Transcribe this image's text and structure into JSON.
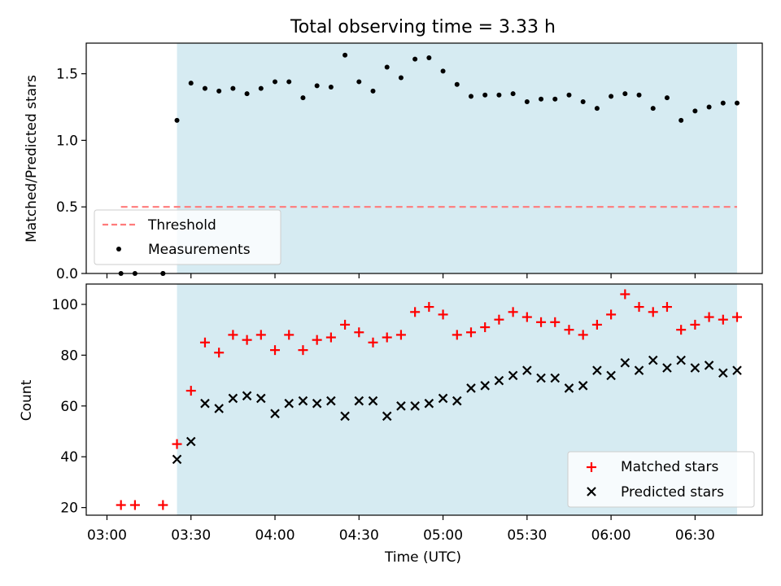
{
  "title": "Total observing time = 3.33 h",
  "colors": {
    "shade": "#add8e6",
    "threshold": "#ff7b7b",
    "matched": "#ff0000",
    "predicted": "#000000",
    "measurement": "#000000"
  },
  "x_axis": {
    "label": "Time (UTC)",
    "ticks": [
      {
        "label": "03:00",
        "min": 180
      },
      {
        "label": "03:30",
        "min": 210
      },
      {
        "label": "04:00",
        "min": 240
      },
      {
        "label": "04:30",
        "min": 270
      },
      {
        "label": "05:00",
        "min": 300
      },
      {
        "label": "05:30",
        "min": 330
      },
      {
        "label": "06:00",
        "min": 360
      },
      {
        "label": "06:30",
        "min": 390
      }
    ]
  },
  "chart_data": [
    {
      "type": "scatter",
      "ylabel": "Matched/Predicted stars",
      "ylim": [
        0,
        1.73
      ],
      "yticks": [
        "0.0",
        "0.5",
        "1.0",
        "1.5"
      ],
      "shaded_span": [
        "03:25",
        "06:45"
      ],
      "threshold": {
        "name": "Threshold",
        "y": 0.5,
        "x_range": [
          "03:05",
          "06:45"
        ]
      },
      "legend": {
        "placement": "lower-left",
        "entries": [
          "Threshold",
          "Measurements"
        ]
      },
      "series": [
        {
          "name": "Measurements",
          "x": [
            "03:05",
            "03:10",
            "03:20",
            "03:20",
            "03:25",
            "03:30",
            "03:35",
            "03:40",
            "03:45",
            "03:50",
            "03:55",
            "04:00",
            "04:05",
            "04:10",
            "04:15",
            "04:20",
            "04:25",
            "04:30",
            "04:35",
            "04:40",
            "04:45",
            "04:50",
            "04:55",
            "05:00",
            "05:05",
            "05:10",
            "05:15",
            "05:20",
            "05:25",
            "05:30",
            "05:35",
            "05:40",
            "05:45",
            "05:50",
            "05:55",
            "06:00",
            "06:05",
            "06:10",
            "06:15",
            "06:20",
            "06:25",
            "06:30",
            "06:35",
            "06:40",
            "06:45"
          ],
          "y": [
            0,
            0,
            0,
            0,
            1.15,
            1.43,
            1.39,
            1.37,
            1.39,
            1.35,
            1.39,
            1.44,
            1.44,
            1.32,
            1.41,
            1.4,
            1.64,
            1.44,
            1.37,
            1.55,
            1.47,
            1.61,
            1.62,
            1.52,
            1.42,
            1.33,
            1.34,
            1.34,
            1.35,
            1.29,
            1.31,
            1.31,
            1.34,
            1.29,
            1.24,
            1.33,
            1.35,
            1.34,
            1.24,
            1.32,
            1.15,
            1.22,
            1.25,
            1.28,
            1.28
          ]
        }
      ]
    },
    {
      "type": "scatter",
      "ylabel": "Count",
      "ylim": [
        17,
        108
      ],
      "yticks": [
        "20",
        "40",
        "60",
        "80",
        "100"
      ],
      "shaded_span": [
        "03:25",
        "06:45"
      ],
      "legend": {
        "placement": "lower-right",
        "entries": [
          "Matched stars",
          "Predicted stars"
        ]
      },
      "x": [
        "03:05",
        "03:10",
        "03:20",
        "03:25",
        "03:30",
        "03:35",
        "03:40",
        "03:45",
        "03:50",
        "03:55",
        "04:00",
        "04:05",
        "04:10",
        "04:15",
        "04:20",
        "04:25",
        "04:30",
        "04:35",
        "04:40",
        "04:45",
        "04:50",
        "04:55",
        "05:00",
        "05:05",
        "05:10",
        "05:15",
        "05:20",
        "05:25",
        "05:30",
        "05:35",
        "05:40",
        "05:45",
        "05:50",
        "05:55",
        "06:00",
        "06:05",
        "06:10",
        "06:15",
        "06:20",
        "06:25",
        "06:30",
        "06:35",
        "06:40",
        "06:45"
      ],
      "series": [
        {
          "name": "Matched stars",
          "marker": "plus",
          "y": [
            21,
            21,
            21,
            45,
            66,
            85,
            81,
            88,
            86,
            88,
            82,
            88,
            82,
            86,
            87,
            92,
            89,
            85,
            87,
            88,
            97,
            99,
            96,
            88,
            89,
            91,
            94,
            97,
            95,
            93,
            93,
            90,
            88,
            92,
            96,
            104,
            99,
            97,
            99,
            90,
            92,
            95,
            94,
            95
          ]
        },
        {
          "name": "Predicted stars",
          "marker": "x",
          "y": [
            null,
            null,
            null,
            39,
            46,
            61,
            59,
            63,
            64,
            63,
            57,
            61,
            62,
            61,
            62,
            56,
            62,
            62,
            56,
            60,
            60,
            61,
            63,
            62,
            67,
            68,
            70,
            72,
            74,
            71,
            71,
            67,
            68,
            74,
            72,
            77,
            74,
            78,
            75,
            78,
            75,
            76,
            73,
            74
          ]
        }
      ]
    }
  ]
}
